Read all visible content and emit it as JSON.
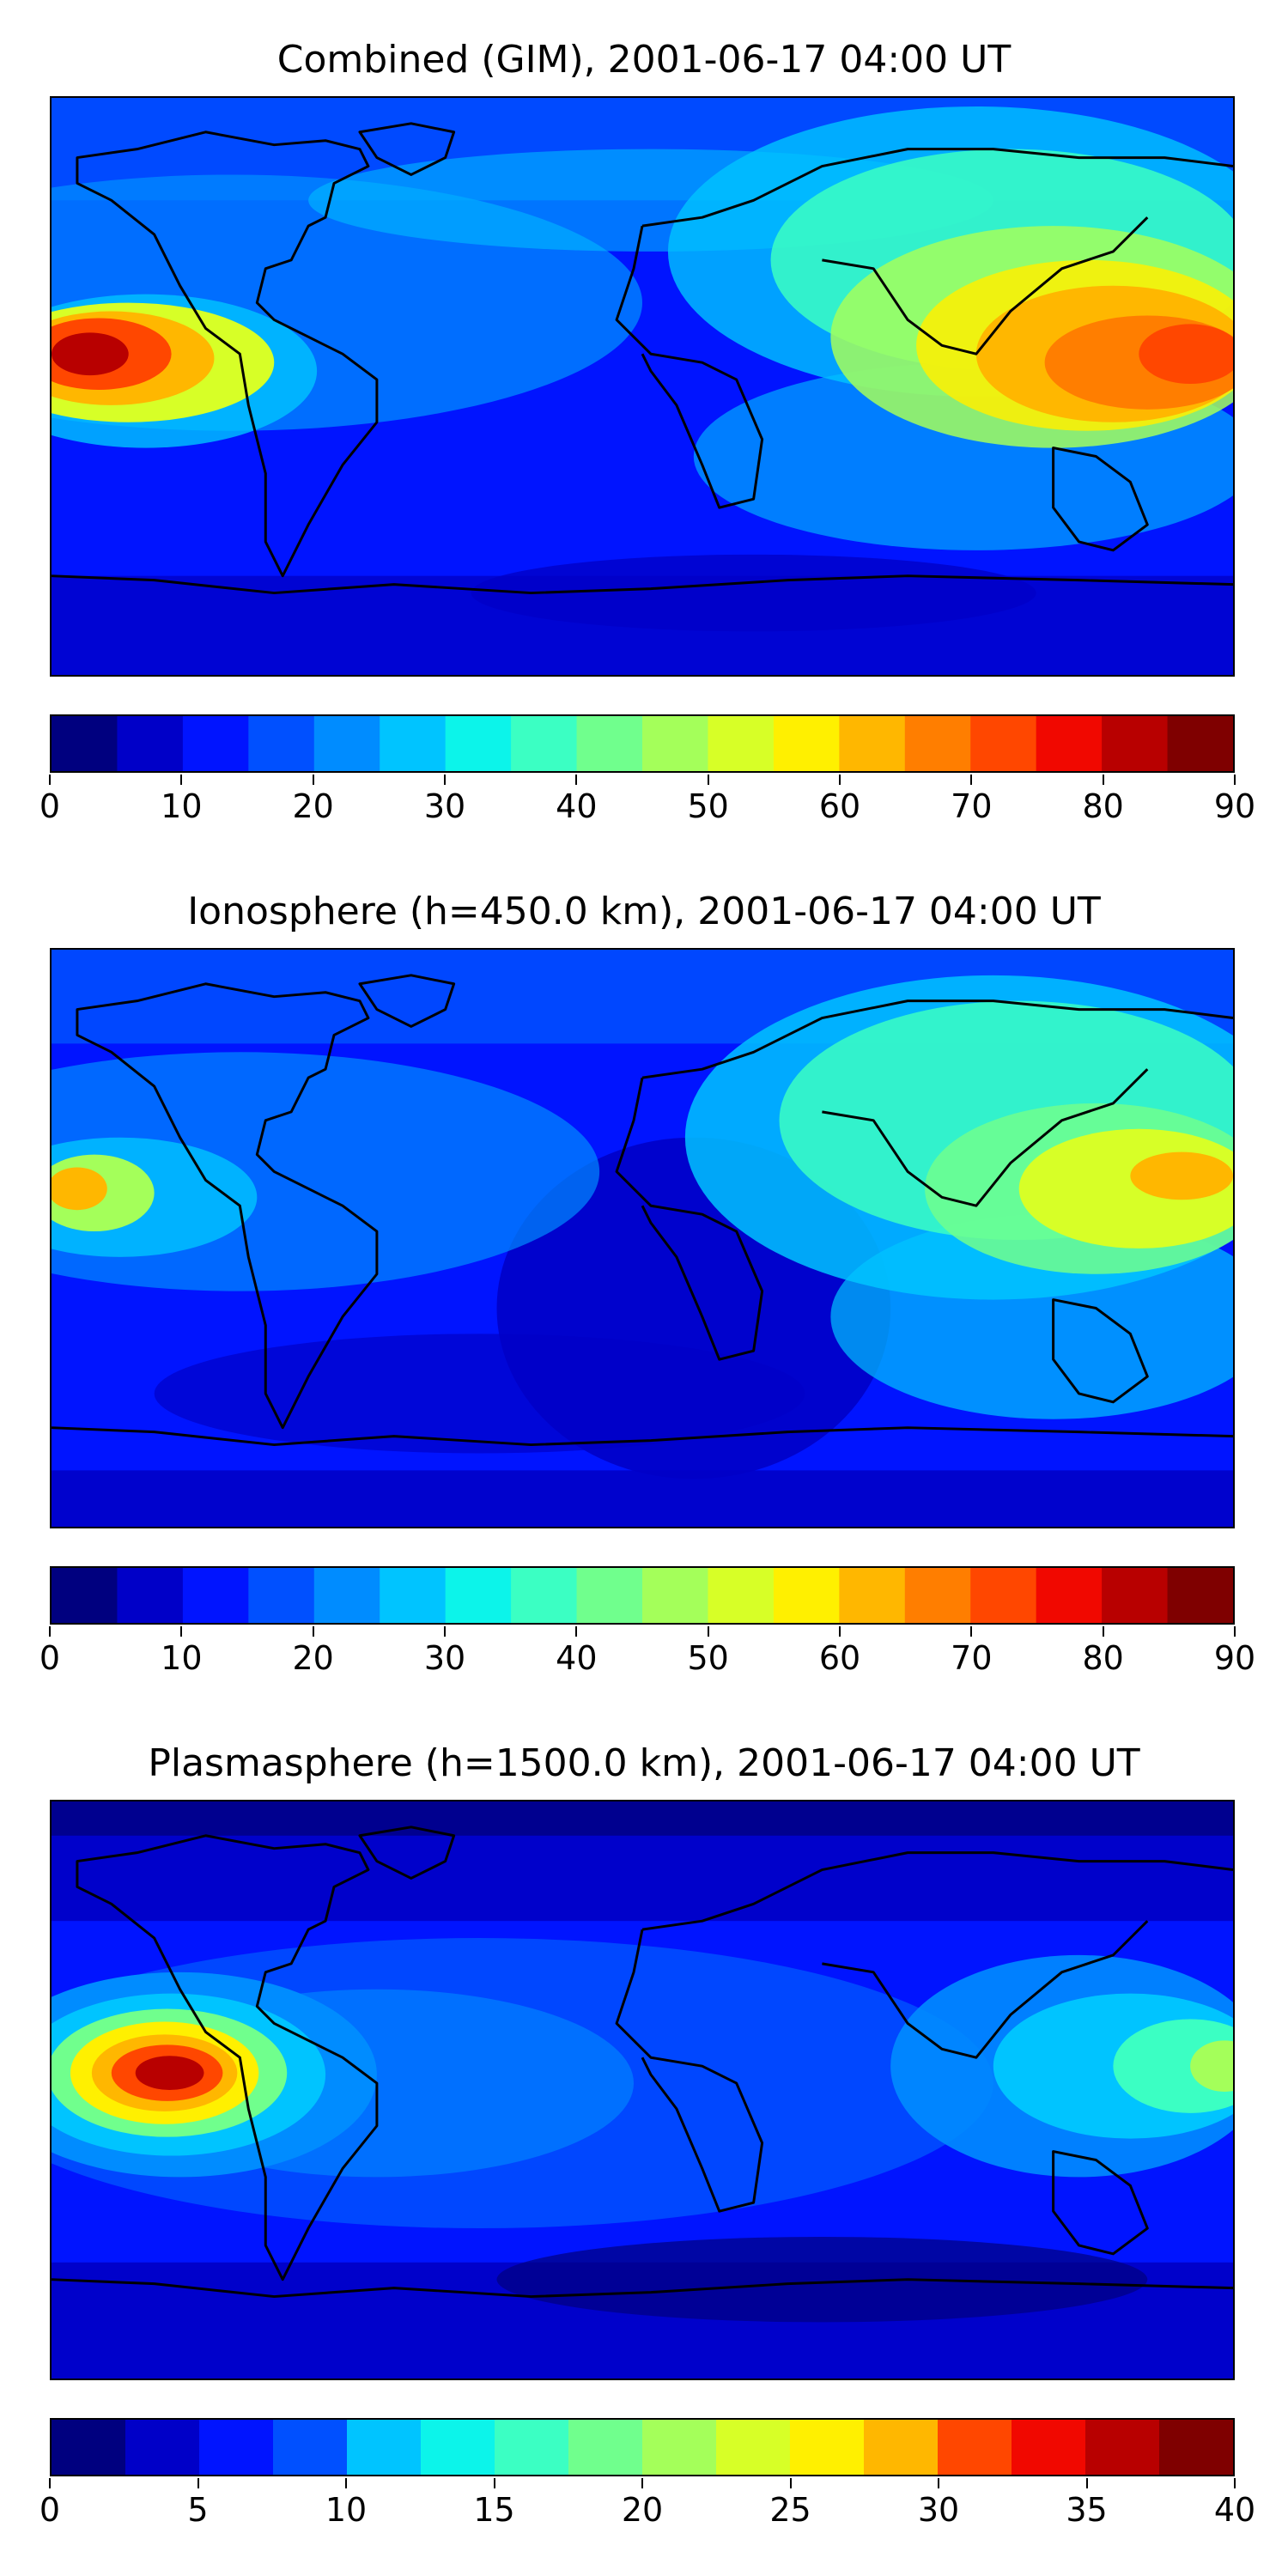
{
  "panels": [
    {
      "title": "Combined (GIM), 2001-06-17 04:00 UT",
      "colorbar": {
        "min": 0,
        "max": 90,
        "step": 5,
        "tick_labels": [
          "0",
          "10",
          "20",
          "30",
          "40",
          "50",
          "60",
          "70",
          "80",
          "90"
        ]
      }
    },
    {
      "title": "Ionosphere  (h=450.0 km), 2001-06-17 04:00 UT",
      "colorbar": {
        "min": 0,
        "max": 90,
        "step": 5,
        "tick_labels": [
          "0",
          "10",
          "20",
          "30",
          "40",
          "50",
          "60",
          "70",
          "80",
          "90"
        ]
      }
    },
    {
      "title": "Plasmasphere (h=1500.0 km), 2001-06-17 04:00 UT",
      "colorbar": {
        "min": 0,
        "max": 40,
        "step": 2.5,
        "tick_labels": [
          "0",
          "5",
          "10",
          "15",
          "20",
          "25",
          "30",
          "35",
          "40"
        ]
      }
    }
  ],
  "palette": [
    "#00007f",
    "#0000c8",
    "#0014ff",
    "#0050ff",
    "#008cff",
    "#00c4ff",
    "#0cf4ea",
    "#3bffc3",
    "#70ff8d",
    "#a4ff5a",
    "#d7ff27",
    "#fff000",
    "#ffb700",
    "#ff7e00",
    "#ff4700",
    "#f10800",
    "#b80000",
    "#7f0000",
    "#7f0000",
    "#7f0000"
  ],
  "colors": {
    "coastline": "#000000",
    "background": "#ffffff"
  }
}
